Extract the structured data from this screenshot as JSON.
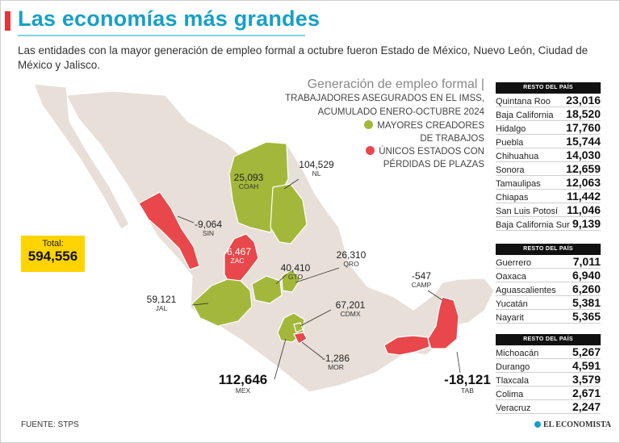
{
  "header": {
    "title": "Las economías más grandes",
    "subtitle": "Las entidades con la mayor generación de empleo formal a octubre fueron Estado de México, Nuevo León, Ciudad de México y Jalisco."
  },
  "legend": {
    "title": "Generación de empleo formal",
    "sub1": "TRABAJADORES ASEGURADOS EN EL IMSS,",
    "sub2": "ACUMULADO ENERO-OCTUBRE 2024",
    "green1": "MAYORES CREADORES",
    "green2": "DE TRABAJOS",
    "red1": "ÚNICOS ESTADOS CON",
    "red2": "PÉRDIDAS DE PLAZAS"
  },
  "colors": {
    "green": "#a3b83b",
    "red": "#e8474b",
    "land": "#e8dfd8",
    "title": "#16a0c7",
    "total_box": "#ffd400"
  },
  "total": {
    "label": "Total:",
    "value": "594,556"
  },
  "source": "FUENTE: STPS",
  "brand": "EL ECONOMISTA",
  "chart_data": {
    "type": "table",
    "title": "Generación de empleo formal",
    "map_labels": [
      {
        "abbr": "COAH",
        "value": "25,093",
        "category": "top"
      },
      {
        "abbr": "NL",
        "value": "104,529",
        "category": "top"
      },
      {
        "abbr": "SIN",
        "value": "-9,064",
        "category": "loss"
      },
      {
        "abbr": "ZAC",
        "value": "-6,467",
        "category": "loss"
      },
      {
        "abbr": "GTO",
        "value": "40,410",
        "category": "top"
      },
      {
        "abbr": "QRO",
        "value": "26,310",
        "category": "top"
      },
      {
        "abbr": "JAL",
        "value": "59,121",
        "category": "top"
      },
      {
        "abbr": "CDMX",
        "value": "67,201",
        "category": "top"
      },
      {
        "abbr": "CAMP",
        "value": "-547",
        "category": "loss"
      },
      {
        "abbr": "MOR",
        "value": "-1,286",
        "category": "loss"
      },
      {
        "abbr": "MEX",
        "value": "112,646",
        "category": "top"
      },
      {
        "abbr": "TAB",
        "value": "-18,121",
        "category": "loss"
      }
    ],
    "rest_header": "RESTO DEL PAÍS",
    "rest_groups": [
      {
        "rows": [
          {
            "state": "Quintana Roo",
            "value": "23,016"
          },
          {
            "state": "Baja California",
            "value": "18,520"
          },
          {
            "state": "Hidalgo",
            "value": "17,760"
          },
          {
            "state": "Puebla",
            "value": "15,744"
          },
          {
            "state": "Chihuahua",
            "value": "14,030"
          },
          {
            "state": "Sonora",
            "value": "12,659"
          },
          {
            "state": "Tamaulipas",
            "value": "12,063"
          },
          {
            "state": "Chiapas",
            "value": "11,442"
          },
          {
            "state": "San Luis Potosí",
            "value": "11,046"
          },
          {
            "state": "Baja California Sur",
            "value": "9,139"
          }
        ]
      },
      {
        "rows": [
          {
            "state": "Guerrero",
            "value": "7,011"
          },
          {
            "state": "Oaxaca",
            "value": "6,940"
          },
          {
            "state": "Aguascalientes",
            "value": "6,260"
          },
          {
            "state": "Yucatán",
            "value": "5,381"
          },
          {
            "state": "Nayarit",
            "value": "5,365"
          }
        ]
      },
      {
        "rows": [
          {
            "state": "Michoacán",
            "value": "5,267"
          },
          {
            "state": "Durango",
            "value": "4,591"
          },
          {
            "state": "Tlaxcala",
            "value": "3,579"
          },
          {
            "state": "Colima",
            "value": "2,671"
          },
          {
            "state": "Veracruz",
            "value": "2,247"
          }
        ]
      }
    ]
  }
}
